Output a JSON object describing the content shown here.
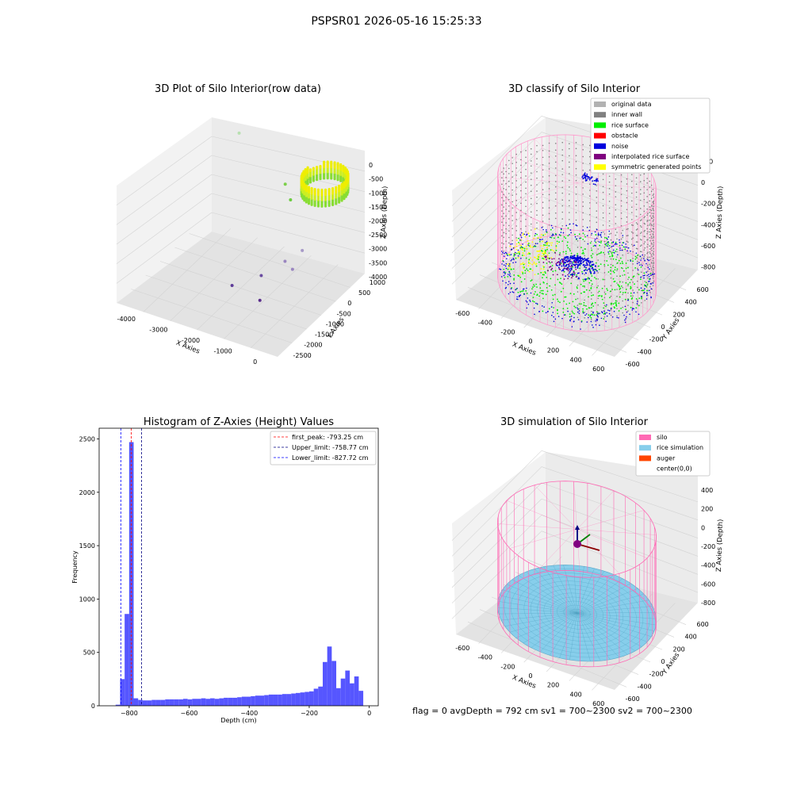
{
  "figure": {
    "suptitle": "PSPSR01 2026-05-16 15:25:33",
    "info_text": "flag = 0     avgDepth = 792 cm  sv1 = 700~2300  sv2 = 700~2300"
  },
  "chart_data": [
    {
      "type": "scatter",
      "dims": 3,
      "title": "3D Plot of Silo Interior(row data)",
      "xlabel": "X Axies",
      "ylabel": "Y Axies",
      "zlabel": "Z Axies (Depth)",
      "xticks": [
        "-4000",
        "-3000",
        "-2000",
        "-1000",
        "0"
      ],
      "yticks": [
        "-2500",
        "-2000",
        "-1500",
        "-1000",
        "-500",
        "0",
        "500",
        "1000"
      ],
      "zticks": [
        "0",
        "-500",
        "-1000",
        "-1500",
        "-2000",
        "-2500",
        "-3000",
        "-3500",
        "-4000"
      ],
      "xlim": [
        -4500,
        500
      ],
      "ylim": [
        -2700,
        1300
      ],
      "zlim": [
        -4200,
        200
      ],
      "outlier_points": [
        {
          "x": -3200,
          "y": 1000,
          "z": -300,
          "color": "#b8e0b0"
        },
        {
          "x": -1700,
          "y": 900,
          "z": -1500,
          "color": "#7cd04a"
        },
        {
          "x": -1400,
          "y": 700,
          "z": -1800,
          "color": "#6ccc40"
        },
        {
          "x": -1100,
          "y": 1100,
          "z": -1200,
          "color": "#90d44a"
        },
        {
          "x": -900,
          "y": 500,
          "z": -3300,
          "color": "#a79ac8"
        },
        {
          "x": -1300,
          "y": 300,
          "z": -3700,
          "color": "#9a86c0"
        },
        {
          "x": -1000,
          "y": 200,
          "z": -3800,
          "color": "#9a86c0"
        },
        {
          "x": -2200,
          "y": -800,
          "z": -4100,
          "color": "#5e3c99"
        },
        {
          "x": -1700,
          "y": -200,
          "z": -4000,
          "color": "#6a4ca0"
        },
        {
          "x": -1200,
          "y": -1000,
          "z": -4100,
          "color": "#5a2d8c"
        }
      ],
      "cluster": {
        "cx": -200,
        "cy": 500,
        "z_top": -300,
        "z_bottom": -900,
        "radius": 600,
        "colors": [
          "#eeee00",
          "#ccee22",
          "#88dd33"
        ]
      }
    },
    {
      "type": "scatter",
      "dims": 3,
      "title": "3D classify of Silo Interior",
      "xlabel": "X Axies",
      "ylabel": "Y Axies",
      "zlabel": "Z Axies (Depth)",
      "xticks": [
        "-600",
        "-400",
        "-200",
        "0",
        "200",
        "400",
        "600"
      ],
      "yticks": [
        "-600",
        "-400",
        "-200",
        "0",
        "200",
        "400",
        "600"
      ],
      "zticks": [
        "200",
        "0",
        "-200",
        "-400",
        "-600",
        "-800"
      ],
      "xlim": [
        -700,
        700
      ],
      "ylim": [
        -700,
        700
      ],
      "zlim": [
        -900,
        300
      ],
      "legend": {
        "position": "upper right",
        "entries": [
          {
            "label": "original data",
            "color": "#b2b2b2"
          },
          {
            "label": "inner wall",
            "color": "#808080"
          },
          {
            "label": "rice surface",
            "color": "#00ee00"
          },
          {
            "label": "obstacle",
            "color": "#ff0000"
          },
          {
            "label": "noise",
            "color": "#0000dd"
          },
          {
            "label": "interpolated rice surface",
            "color": "#800080"
          },
          {
            "label": "symmetric generated points",
            "color": "#ffff00"
          }
        ]
      },
      "silo": {
        "radius": 620,
        "z_top": 100,
        "z_bottom": -850,
        "color": "#ff99cc"
      }
    },
    {
      "type": "bar",
      "title": "Histogram of Z-Axies (Height) Values",
      "xlabel": "Depth (cm)",
      "ylabel": "Frequency",
      "xlim": [
        -900,
        30
      ],
      "ylim": [
        0,
        2600
      ],
      "xticks": [
        -800,
        -600,
        -400,
        -200,
        0
      ],
      "yticks": [
        0,
        500,
        1000,
        1500,
        2000,
        2500
      ],
      "bin_width": 15,
      "bar_color": "#4d4dff",
      "bins": [
        {
          "x": -845,
          "value": 10
        },
        {
          "x": -830,
          "value": 250
        },
        {
          "x": -815,
          "value": 860
        },
        {
          "x": -800,
          "value": 2470
        },
        {
          "x": -785,
          "value": 70
        },
        {
          "x": -770,
          "value": 55
        },
        {
          "x": -755,
          "value": 50
        },
        {
          "x": -740,
          "value": 50
        },
        {
          "x": -725,
          "value": 55
        },
        {
          "x": -710,
          "value": 55
        },
        {
          "x": -695,
          "value": 55
        },
        {
          "x": -680,
          "value": 60
        },
        {
          "x": -665,
          "value": 60
        },
        {
          "x": -650,
          "value": 60
        },
        {
          "x": -635,
          "value": 60
        },
        {
          "x": -620,
          "value": 65
        },
        {
          "x": -605,
          "value": 60
        },
        {
          "x": -590,
          "value": 65
        },
        {
          "x": -575,
          "value": 65
        },
        {
          "x": -560,
          "value": 70
        },
        {
          "x": -545,
          "value": 65
        },
        {
          "x": -530,
          "value": 70
        },
        {
          "x": -515,
          "value": 65
        },
        {
          "x": -500,
          "value": 70
        },
        {
          "x": -485,
          "value": 75
        },
        {
          "x": -470,
          "value": 75
        },
        {
          "x": -455,
          "value": 75
        },
        {
          "x": -440,
          "value": 80
        },
        {
          "x": -425,
          "value": 85
        },
        {
          "x": -410,
          "value": 85
        },
        {
          "x": -395,
          "value": 90
        },
        {
          "x": -380,
          "value": 95
        },
        {
          "x": -365,
          "value": 95
        },
        {
          "x": -350,
          "value": 100
        },
        {
          "x": -335,
          "value": 105
        },
        {
          "x": -320,
          "value": 105
        },
        {
          "x": -305,
          "value": 105
        },
        {
          "x": -290,
          "value": 110
        },
        {
          "x": -275,
          "value": 110
        },
        {
          "x": -260,
          "value": 115
        },
        {
          "x": -245,
          "value": 120
        },
        {
          "x": -230,
          "value": 125
        },
        {
          "x": -215,
          "value": 130
        },
        {
          "x": -200,
          "value": 135
        },
        {
          "x": -185,
          "value": 160
        },
        {
          "x": -170,
          "value": 180
        },
        {
          "x": -155,
          "value": 410
        },
        {
          "x": -140,
          "value": 555
        },
        {
          "x": -125,
          "value": 420
        },
        {
          "x": -110,
          "value": 165
        },
        {
          "x": -95,
          "value": 255
        },
        {
          "x": -80,
          "value": 330
        },
        {
          "x": -65,
          "value": 210
        },
        {
          "x": -50,
          "value": 275
        },
        {
          "x": -35,
          "value": 140
        }
      ],
      "vlines": [
        {
          "x": -793.25,
          "color": "#ff0000",
          "label": "first_peak: -793.25 cm"
        },
        {
          "x": -758.77,
          "color": "#000080",
          "label": "Upper_limit: -758.77 cm"
        },
        {
          "x": -827.72,
          "color": "#0000ff",
          "label": "Lower_limit: -827.72 cm"
        }
      ],
      "legend_position": "upper right"
    },
    {
      "type": "surface",
      "dims": 3,
      "title": "3D simulation of Silo Interior",
      "xlabel": "X Axies",
      "ylabel": "Y Axies",
      "zlabel": "Z Axies (Depth)",
      "xticks": [
        "-600",
        "-400",
        "-200",
        "0",
        "200",
        "400",
        "600"
      ],
      "yticks": [
        "-600",
        "-400",
        "-200",
        "0",
        "200",
        "400",
        "600"
      ],
      "zticks": [
        "400",
        "200",
        "0",
        "-200",
        "-400",
        "-600",
        "-800"
      ],
      "xlim": [
        -700,
        700
      ],
      "ylim": [
        -700,
        700
      ],
      "zlim": [
        -900,
        450
      ],
      "legend": {
        "position": "upper right",
        "entries": [
          {
            "label": "silo",
            "color": "#ff69b4"
          },
          {
            "label": "rice simulation",
            "color": "#87ceeb"
          },
          {
            "label": "auger",
            "color": "#ff4500"
          },
          {
            "label": "center(0,0)",
            "color": ""
          }
        ]
      },
      "silo": {
        "radius": 620,
        "z_top": 100,
        "z_bottom": -850,
        "color": "#ff69b4"
      },
      "rice_surface_z": -792,
      "rice_color": "#87ceeb"
    }
  ]
}
